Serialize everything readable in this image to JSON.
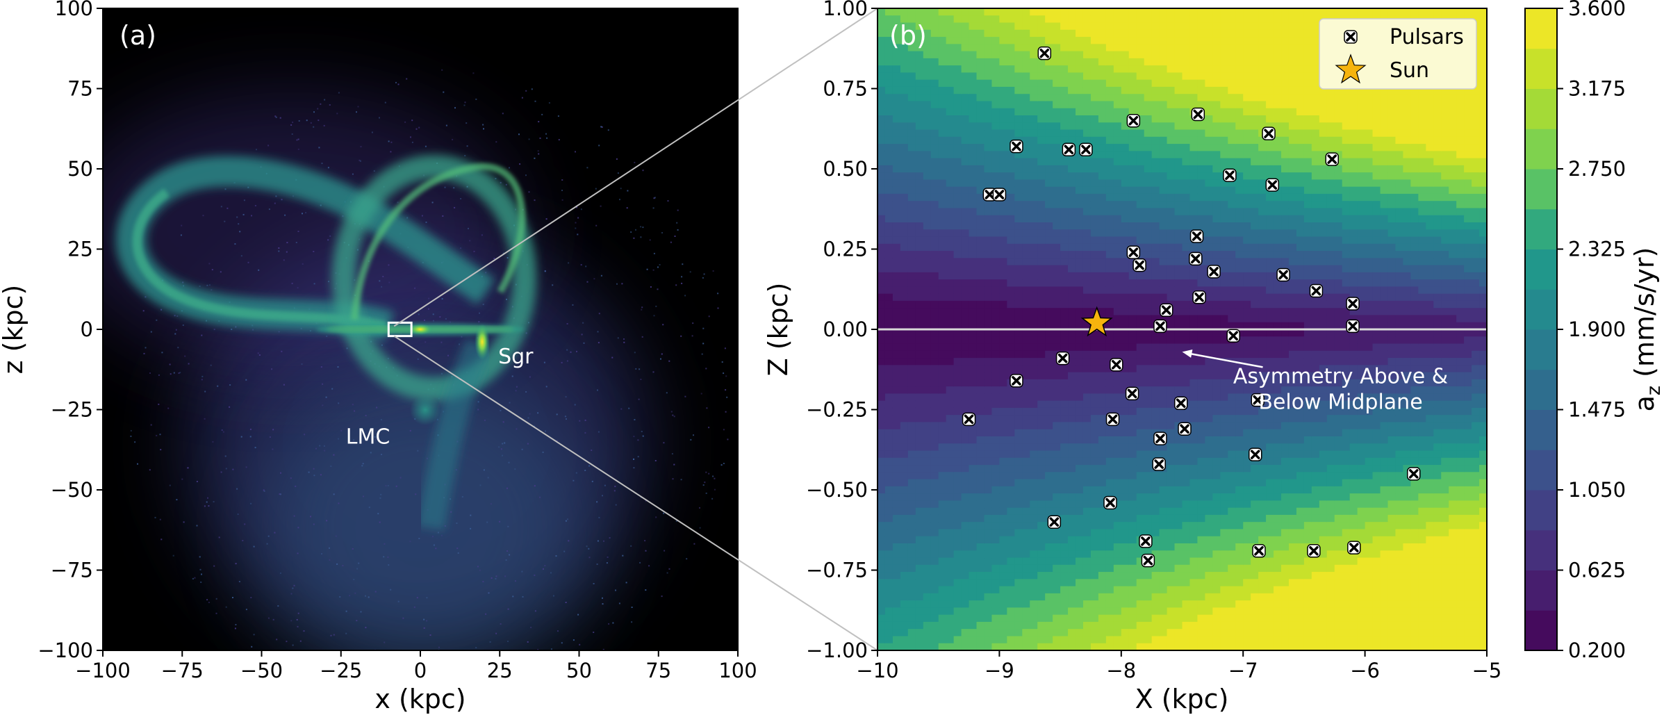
{
  "chart_data": [
    {
      "type": "heatmap",
      "panel_label": "(a)",
      "title": "",
      "xlabel": "x (kpc)",
      "ylabel": "z (kpc)",
      "xlim": [
        -100,
        100
      ],
      "ylim": [
        -100,
        100
      ],
      "xticks": [
        "−100",
        "−75",
        "−50",
        "−25",
        "0",
        "25",
        "50",
        "75",
        "100"
      ],
      "yticks": [
        "−100",
        "−75",
        "−50",
        "−25",
        "0",
        "25",
        "50",
        "75",
        "100"
      ],
      "xtick_values": [
        -100,
        -75,
        -50,
        -25,
        0,
        25,
        50,
        75,
        100
      ],
      "ytick_values": [
        -100,
        -75,
        -50,
        -25,
        0,
        25,
        50,
        75,
        100
      ],
      "annotations": [
        {
          "text": "Sgr",
          "x": 30,
          "z": -8
        },
        {
          "text": "LMC",
          "x": -18,
          "z": -33
        }
      ],
      "zoom_box": {
        "x": [
          -10,
          -5
        ],
        "z": [
          -1,
          1
        ]
      },
      "features": [
        {
          "name": "disk",
          "x": [
            -20,
            22
          ],
          "z": 0
        },
        {
          "name": "sgr_core",
          "x": 19,
          "z": -4
        },
        {
          "name": "lmc",
          "x": 1,
          "z": -26
        }
      ]
    },
    {
      "type": "contour",
      "panel_label": "(b)",
      "xlabel": "X (kpc)",
      "ylabel": "Z (kpc)",
      "xlim": [
        -10,
        -5
      ],
      "ylim": [
        -1,
        1
      ],
      "xticks": [
        "−10",
        "−9",
        "−8",
        "−7",
        "−6",
        "−5"
      ],
      "yticks": [
        "−1.00",
        "−0.75",
        "−0.50",
        "−0.25",
        "0.00",
        "0.25",
        "0.50",
        "0.75",
        "1.00"
      ],
      "xtick_values": [
        -10,
        -9,
        -8,
        -7,
        -6,
        -5
      ],
      "ytick_values": [
        -1.0,
        -0.75,
        -0.5,
        -0.25,
        0.0,
        0.25,
        0.5,
        0.75,
        1.0
      ],
      "midplane_z": 0,
      "legend": [
        {
          "label": "Pulsars",
          "marker": "x-in-box"
        },
        {
          "label": "Sun",
          "marker": "star"
        }
      ],
      "sun": {
        "x": -8.2,
        "z": 0.02
      },
      "annotation": {
        "lines": [
          "Asymmetry Above &",
          "Below Midplane"
        ],
        "text_x": -6.2,
        "text_z": -0.2,
        "arrow_to_x": -7.5,
        "arrow_to_z": -0.07
      },
      "pulsars": [
        {
          "x": -8.63,
          "z": 0.86
        },
        {
          "x": -7.9,
          "z": 0.65
        },
        {
          "x": -7.37,
          "z": 0.67
        },
        {
          "x": -6.79,
          "z": 0.61
        },
        {
          "x": -8.86,
          "z": 0.57
        },
        {
          "x": -8.43,
          "z": 0.56
        },
        {
          "x": -8.29,
          "z": 0.56
        },
        {
          "x": -6.27,
          "z": 0.53
        },
        {
          "x": -7.11,
          "z": 0.48
        },
        {
          "x": -6.76,
          "z": 0.45
        },
        {
          "x": -9.08,
          "z": 0.42
        },
        {
          "x": -9.0,
          "z": 0.42
        },
        {
          "x": -7.38,
          "z": 0.29
        },
        {
          "x": -7.9,
          "z": 0.24
        },
        {
          "x": -7.39,
          "z": 0.22
        },
        {
          "x": -7.85,
          "z": 0.2
        },
        {
          "x": -7.24,
          "z": 0.18
        },
        {
          "x": -6.67,
          "z": 0.17
        },
        {
          "x": -6.4,
          "z": 0.12
        },
        {
          "x": -7.36,
          "z": 0.1
        },
        {
          "x": -6.1,
          "z": 0.08
        },
        {
          "x": -7.63,
          "z": 0.06
        },
        {
          "x": -7.68,
          "z": 0.01
        },
        {
          "x": -6.1,
          "z": 0.01
        },
        {
          "x": -7.08,
          "z": -0.02
        },
        {
          "x": -8.48,
          "z": -0.09
        },
        {
          "x": -8.04,
          "z": -0.11
        },
        {
          "x": -8.86,
          "z": -0.16
        },
        {
          "x": -7.91,
          "z": -0.2
        },
        {
          "x": -6.88,
          "z": -0.22
        },
        {
          "x": -7.51,
          "z": -0.23
        },
        {
          "x": -9.25,
          "z": -0.28
        },
        {
          "x": -8.07,
          "z": -0.28
        },
        {
          "x": -7.48,
          "z": -0.31
        },
        {
          "x": -7.68,
          "z": -0.34
        },
        {
          "x": -6.9,
          "z": -0.39
        },
        {
          "x": -7.69,
          "z": -0.42
        },
        {
          "x": -5.6,
          "z": -0.45
        },
        {
          "x": -8.09,
          "z": -0.54
        },
        {
          "x": -8.55,
          "z": -0.6
        },
        {
          "x": -7.8,
          "z": -0.66
        },
        {
          "x": -6.87,
          "z": -0.69
        },
        {
          "x": -6.42,
          "z": -0.69
        },
        {
          "x": -6.09,
          "z": -0.68
        },
        {
          "x": -7.78,
          "z": -0.72
        }
      ],
      "field_model": {
        "description": "a_z rises with |Z| and toward larger X; weaker below midplane",
        "base": 0.2,
        "slope_above": 2.6,
        "slope_below": 2.2,
        "x_gain": 0.62,
        "x_ref": -10
      }
    }
  ],
  "colorbar": {
    "label": "a_z (mm/s/yr)",
    "label_main": "a",
    "label_sub": "z",
    "label_rest": " (mm/s/yr)",
    "min": 0.2,
    "max": 3.6,
    "levels": 16,
    "ticks": [
      "0.200",
      "0.625",
      "1.050",
      "1.475",
      "1.900",
      "2.325",
      "2.750",
      "3.175",
      "3.600"
    ],
    "tick_values": [
      0.2,
      0.625,
      1.05,
      1.475,
      1.9,
      2.325,
      2.75,
      3.175,
      3.6
    ]
  },
  "colors": {
    "viridis": [
      "#440154",
      "#482777",
      "#3f4a8a",
      "#31678e",
      "#26838f",
      "#1f9d8a",
      "#6cce5a",
      "#b6de2b",
      "#fee825"
    ],
    "midplane": "#d9d9d9",
    "zoom_lines": "#c0c0c0",
    "sun_fill": "#f6b40e"
  }
}
